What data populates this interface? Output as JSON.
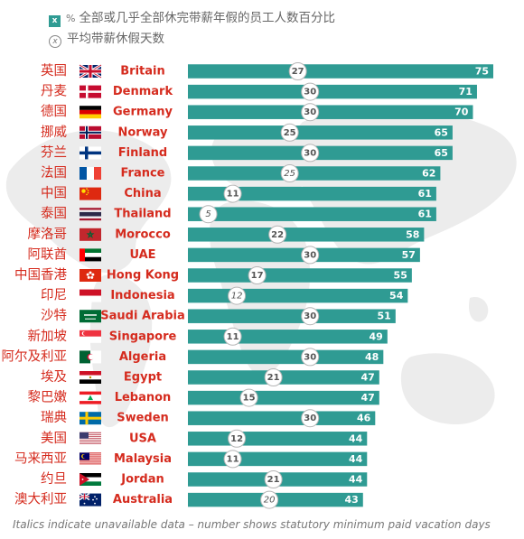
{
  "legend": {
    "percent_symbol": "%",
    "bar_label": "全部或几乎全部休完带薪年假的员工人数百分比",
    "circle_label": "平均带薪休假天数",
    "bar_marker": "x",
    "circle_marker": "x"
  },
  "footer": "Italics indicate unavailable data – number shows statutory minimum paid vacation days",
  "colors": {
    "bar": "#2f9b93",
    "country_en": "#d52b1e",
    "country_cn": "#d52b1e",
    "map": "#ededed"
  },
  "chart_data": {
    "type": "bar",
    "orientation": "horizontal",
    "xlim": [
      0,
      75
    ],
    "categories": [
      {
        "cn": "英国",
        "en": "Britain",
        "flag": "gb",
        "percent": 75,
        "days": 27,
        "days_italic": false
      },
      {
        "cn": "丹麦",
        "en": "Denmark",
        "flag": "dk",
        "percent": 71,
        "days": 30,
        "days_italic": false
      },
      {
        "cn": "德国",
        "en": "Germany",
        "flag": "de",
        "percent": 70,
        "days": 30,
        "days_italic": false
      },
      {
        "cn": "挪威",
        "en": "Norway",
        "flag": "no",
        "percent": 65,
        "days": 25,
        "days_italic": false
      },
      {
        "cn": "芬兰",
        "en": "Finland",
        "flag": "fi",
        "percent": 65,
        "days": 30,
        "days_italic": false
      },
      {
        "cn": "法国",
        "en": "France",
        "flag": "fr",
        "percent": 62,
        "days": 25,
        "days_italic": true
      },
      {
        "cn": "中国",
        "en": "China",
        "flag": "cn",
        "percent": 61,
        "days": 11,
        "days_italic": false
      },
      {
        "cn": "泰国",
        "en": "Thailand",
        "flag": "th",
        "percent": 61,
        "days": 5,
        "days_italic": true
      },
      {
        "cn": "摩洛哥",
        "en": "Morocco",
        "flag": "ma",
        "percent": 58,
        "days": 22,
        "days_italic": false
      },
      {
        "cn": "阿联酋",
        "en": "UAE",
        "flag": "ae",
        "percent": 57,
        "days": 30,
        "days_italic": false
      },
      {
        "cn": "中国香港",
        "en": "Hong Kong",
        "flag": "hk",
        "percent": 55,
        "days": 17,
        "days_italic": false
      },
      {
        "cn": "印尼",
        "en": "Indonesia",
        "flag": "id",
        "percent": 54,
        "days": 12,
        "days_italic": true
      },
      {
        "cn": "沙特",
        "en": "Saudi Arabia",
        "flag": "sa",
        "percent": 51,
        "days": 30,
        "days_italic": false
      },
      {
        "cn": "新加坡",
        "en": "Singapore",
        "flag": "sg",
        "percent": 49,
        "days": 11,
        "days_italic": false
      },
      {
        "cn": "阿尔及利亚",
        "en": "Algeria",
        "flag": "dz",
        "percent": 48,
        "days": 30,
        "days_italic": false
      },
      {
        "cn": "埃及",
        "en": "Egypt",
        "flag": "eg",
        "percent": 47,
        "days": 21,
        "days_italic": false
      },
      {
        "cn": "黎巴嫩",
        "en": "Lebanon",
        "flag": "lb",
        "percent": 47,
        "days": 15,
        "days_italic": false
      },
      {
        "cn": "瑞典",
        "en": "Sweden",
        "flag": "se",
        "percent": 46,
        "days": 30,
        "days_italic": false
      },
      {
        "cn": "美国",
        "en": "USA",
        "flag": "us",
        "percent": 44,
        "days": 12,
        "days_italic": false
      },
      {
        "cn": "马来西亚",
        "en": "Malaysia",
        "flag": "my",
        "percent": 44,
        "days": 11,
        "days_italic": false
      },
      {
        "cn": "约旦",
        "en": "Jordan",
        "flag": "jo",
        "percent": 44,
        "days": 21,
        "days_italic": false
      },
      {
        "cn": "澳大利亚",
        "en": "Australia",
        "flag": "au",
        "percent": 43,
        "days": 20,
        "days_italic": true
      }
    ]
  }
}
